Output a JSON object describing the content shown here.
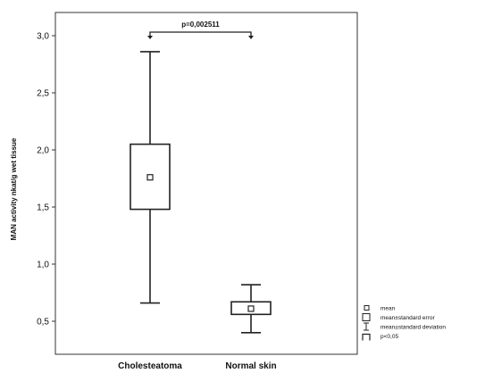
{
  "chart_data": {
    "type": "box",
    "ylabel": "MAN activity nkat/g wet tissue",
    "categories": [
      "Cholesteatoma",
      "Normal skin"
    ],
    "series": [
      {
        "category": "Cholesteatoma",
        "mean": 1.76,
        "se_low": 1.48,
        "se_high": 2.05,
        "sd_low": 0.66,
        "sd_high": 2.86
      },
      {
        "category": "Normal skin",
        "mean": 0.61,
        "se_low": 0.56,
        "se_high": 0.67,
        "sd_low": 0.4,
        "sd_high": 0.82
      }
    ],
    "ylim": [
      0.4,
      3.2
    ],
    "yticks": [
      "0,5",
      "1,0",
      "1,5",
      "2,0",
      "2,5",
      "3,0"
    ],
    "ytick_values": [
      0.5,
      1.0,
      1.5,
      2.0,
      2.5,
      3.0
    ],
    "annotation": {
      "text": "p=0,002511",
      "y": 3.0
    },
    "grid": false,
    "legend_position": "bottom-right",
    "legend": [
      {
        "symbol": "mean-square",
        "label": "mean"
      },
      {
        "symbol": "box",
        "label": "mean±standard error"
      },
      {
        "symbol": "whisker",
        "label": "mean±standard deviation"
      },
      {
        "symbol": "bracket",
        "label": "p<0,05"
      }
    ]
  }
}
